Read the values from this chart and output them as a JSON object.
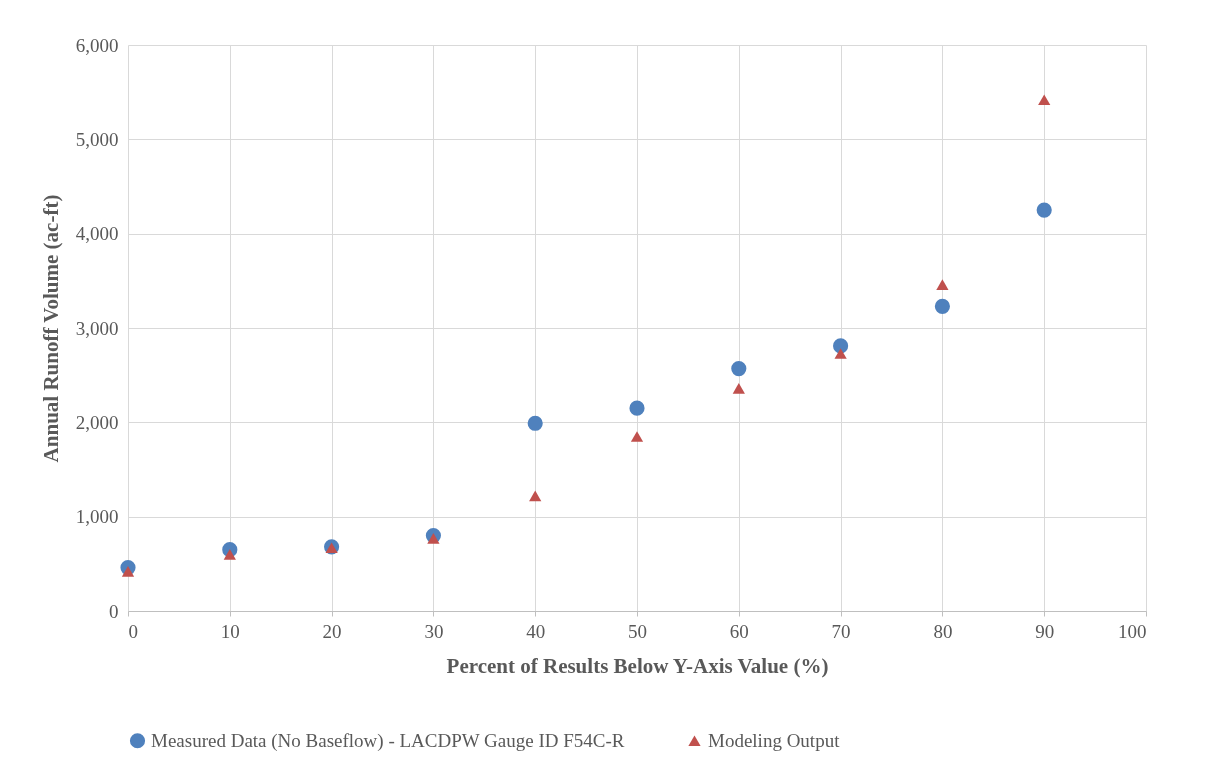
{
  "chart_data": {
    "type": "scatter",
    "xlabel": "Percent of Results Below Y-Axis Value (%)",
    "ylabel": "Annual Runoff Volume (ac-ft)",
    "x": [
      0,
      10,
      20,
      30,
      40,
      50,
      60,
      70,
      80,
      90
    ],
    "series": [
      {
        "name": "Measured Data (No Baseflow) - LACDPW Gauge ID F54C-R",
        "color": "#4f81bd",
        "marker": "circle",
        "values": [
          460,
          650,
          680,
          800,
          1990,
          2150,
          2570,
          2810,
          3230,
          4250
        ]
      },
      {
        "name": "Modeling Output",
        "color": "#c0504d",
        "marker": "triangle",
        "values": [
          420,
          600,
          670,
          770,
          1220,
          1850,
          2360,
          2730,
          3460,
          5420
        ]
      }
    ],
    "xlim": [
      0,
      100
    ],
    "xticks": [
      0,
      10,
      20,
      30,
      40,
      50,
      60,
      70,
      80,
      90,
      100
    ],
    "ylim": [
      0,
      6000
    ],
    "yticks": [
      {
        "value": 0,
        "label": "0"
      },
      {
        "value": 1000,
        "label": "1,000"
      },
      {
        "value": 2000,
        "label": "2,000"
      },
      {
        "value": 3000,
        "label": "3,000"
      },
      {
        "value": 4000,
        "label": "4,000"
      },
      {
        "value": 5000,
        "label": "5,000"
      },
      {
        "value": 6000,
        "label": "6,000"
      }
    ],
    "grid": true,
    "legend": "bottom"
  }
}
